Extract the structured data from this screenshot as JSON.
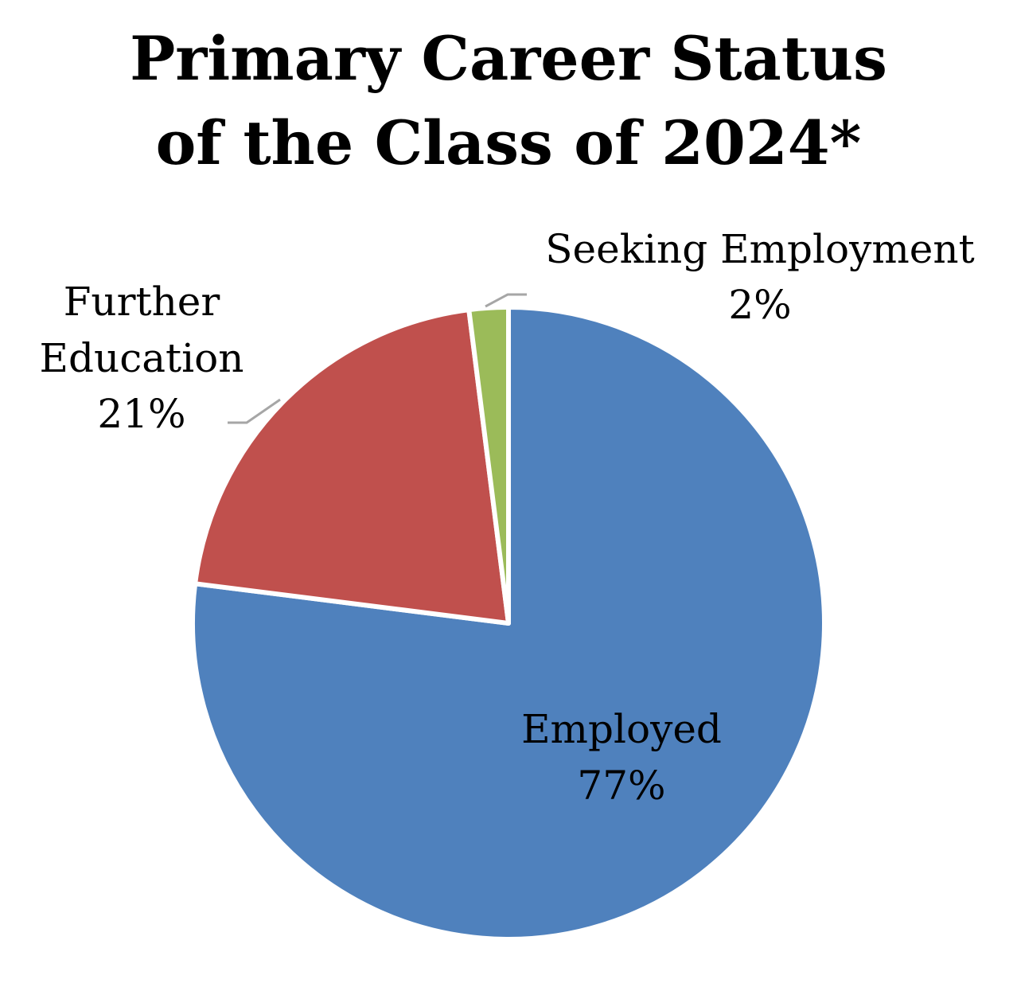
{
  "chart_data": {
    "type": "pie",
    "title_lines": [
      "Primary Career Status",
      "of the Class of 2024*"
    ],
    "slices": [
      {
        "label": "Employed",
        "value": 77,
        "value_label": "77%",
        "color": "#4F81BD"
      },
      {
        "label": "Further Education",
        "value": 21,
        "value_label": "21%",
        "color": "#C0504D"
      },
      {
        "label": "Seeking Employment",
        "value": 2,
        "value_label": "2%",
        "color": "#9BBB59"
      }
    ],
    "label_lines": {
      "employed": [
        "Employed",
        "77%"
      ],
      "further_education": [
        "Further",
        "Education",
        "21%"
      ],
      "seeking_employment": [
        "Seeking Employment",
        "2%"
      ]
    },
    "leader_line_color": "#A6A6A6",
    "slice_border_color": "#FFFFFF"
  }
}
